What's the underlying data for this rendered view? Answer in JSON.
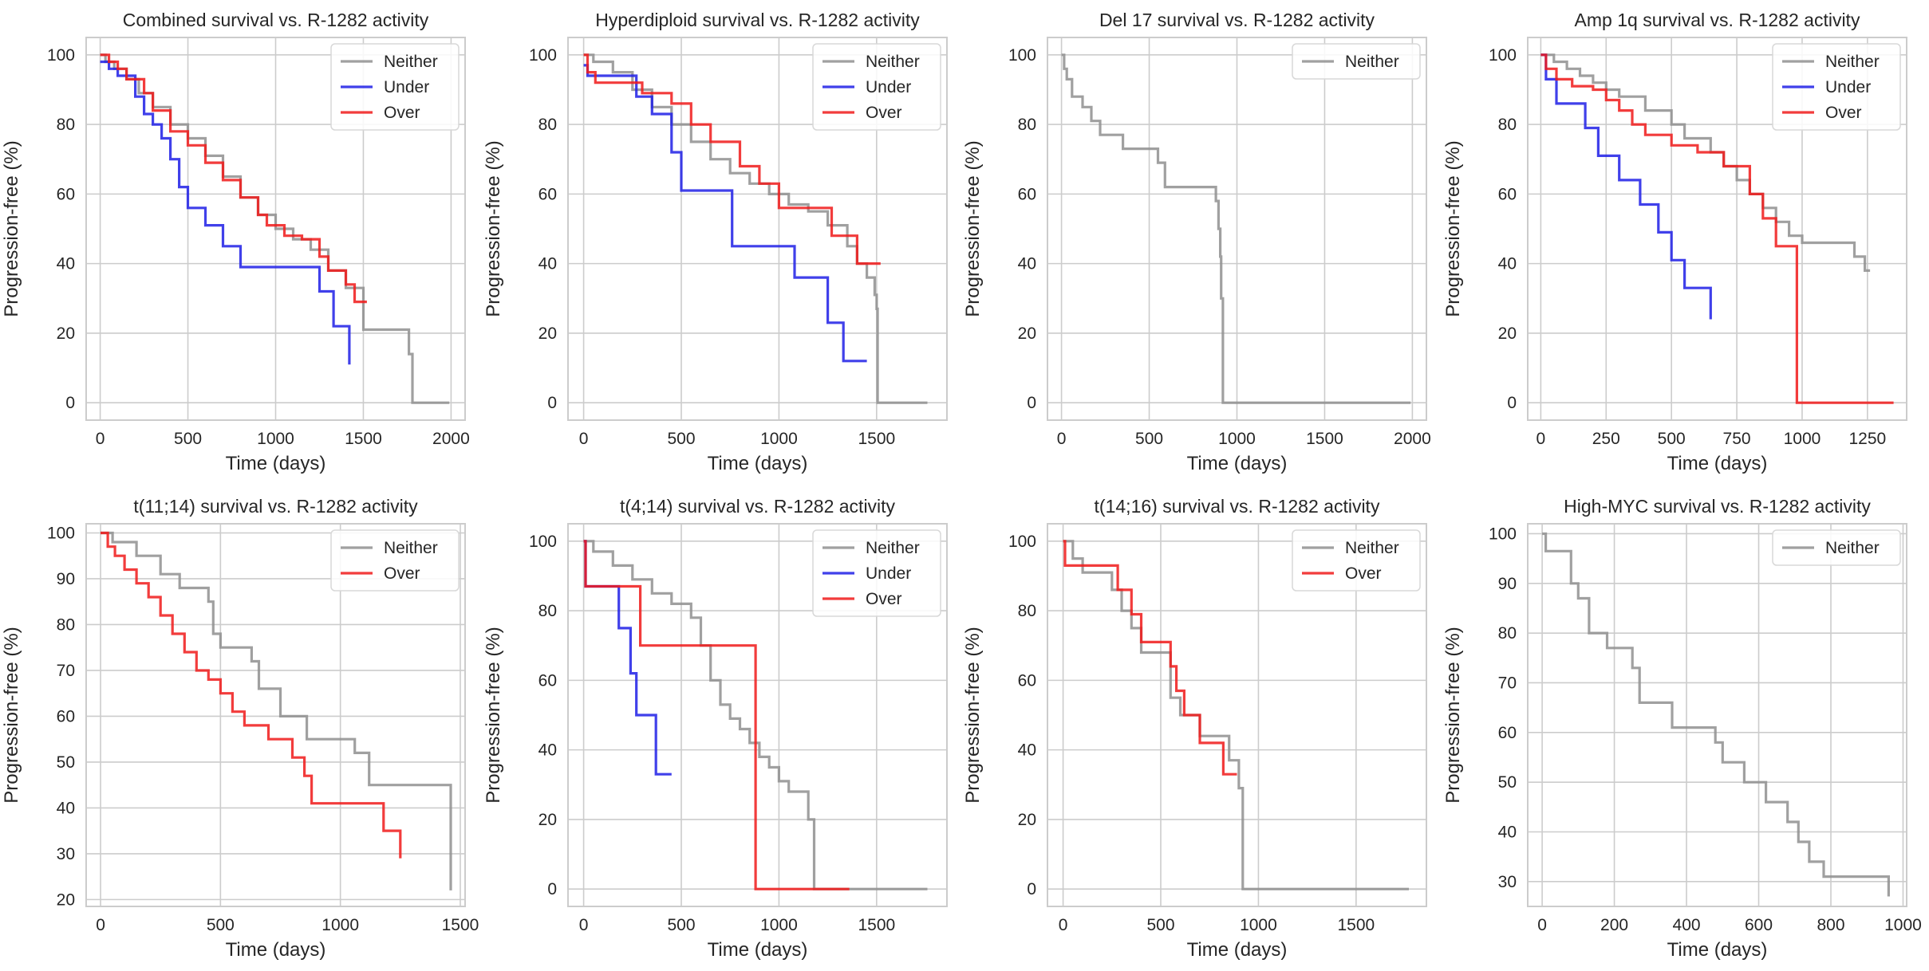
{
  "chart_data": [
    {
      "type": "line",
      "title": "Combined survival vs. R-1282 activity",
      "xlabel": "Time (days)",
      "ylabel": "Progression-free (%)",
      "xlim": [
        -80,
        2080
      ],
      "ylim": [
        -5,
        105
      ],
      "xticks": [
        0,
        500,
        1000,
        1500,
        2000
      ],
      "yticks": [
        0,
        20,
        40,
        60,
        80,
        100
      ],
      "legend": "top-right",
      "series": [
        {
          "name": "Neither",
          "color": "#8f8f8f",
          "x": [
            0,
            30,
            80,
            150,
            220,
            300,
            400,
            500,
            600,
            700,
            800,
            900,
            1000,
            1100,
            1200,
            1300,
            1400,
            1500,
            1500,
            1760,
            1760,
            1780,
            1780,
            1990
          ],
          "y": [
            100,
            98,
            96,
            93,
            89,
            85,
            80,
            76,
            71,
            65,
            59,
            54,
            50,
            47,
            44,
            38,
            33,
            28,
            21,
            21,
            14,
            14,
            0,
            0
          ]
        },
        {
          "name": "Under",
          "color": "#1f1fe6",
          "x": [
            0,
            50,
            100,
            200,
            250,
            300,
            350,
            400,
            450,
            500,
            600,
            700,
            800,
            1000,
            1250,
            1330,
            1420
          ],
          "y": [
            98,
            96,
            94,
            88,
            83,
            80,
            76,
            70,
            62,
            56,
            51,
            45,
            39,
            39,
            32,
            22,
            11
          ]
        },
        {
          "name": "Over",
          "color": "#f01a1a",
          "x": [
            0,
            50,
            100,
            150,
            250,
            300,
            400,
            500,
            600,
            700,
            800,
            900,
            950,
            1050,
            1150,
            1250,
            1300,
            1400,
            1450,
            1520
          ],
          "y": [
            100,
            98,
            96,
            93,
            89,
            84,
            78,
            74,
            69,
            64,
            59,
            54,
            51,
            48,
            47,
            42,
            38,
            34,
            29,
            29
          ]
        }
      ]
    },
    {
      "type": "line",
      "title": "Hyperdiploid survival vs. R-1282 activity",
      "xlabel": "Time (days)",
      "ylabel": "Progression-free (%)",
      "xlim": [
        -80,
        1860
      ],
      "ylim": [
        -5,
        105
      ],
      "xticks": [
        0,
        500,
        1000,
        1500
      ],
      "yticks": [
        0,
        20,
        40,
        60,
        80,
        100
      ],
      "legend": "top-right",
      "series": [
        {
          "name": "Neither",
          "color": "#8f8f8f",
          "x": [
            0,
            50,
            150,
            250,
            350,
            450,
            550,
            650,
            750,
            850,
            950,
            1050,
            1150,
            1250,
            1350,
            1400,
            1450,
            1490,
            1500,
            1505,
            1760
          ],
          "y": [
            100,
            98,
            95,
            90,
            85,
            80,
            75,
            70,
            66,
            63,
            60,
            57,
            55,
            51,
            45,
            40,
            36,
            31,
            27,
            0,
            0
          ]
        },
        {
          "name": "Under",
          "color": "#1f1fe6",
          "x": [
            0,
            20,
            270,
            350,
            450,
            500,
            760,
            1080,
            1250,
            1330,
            1450
          ],
          "y": [
            97,
            94,
            88,
            83,
            72,
            61,
            45,
            36,
            23,
            12,
            12
          ]
        },
        {
          "name": "Over",
          "color": "#f01a1a",
          "x": [
            0,
            20,
            60,
            300,
            450,
            550,
            650,
            800,
            900,
            1000,
            1270,
            1400,
            1520
          ],
          "y": [
            100,
            95,
            92,
            89,
            86,
            80,
            75,
            68,
            63,
            56,
            48,
            40,
            40
          ]
        }
      ]
    },
    {
      "type": "line",
      "title": "Del 17 survival vs. R-1282 activity",
      "xlabel": "Time (days)",
      "ylabel": "Progression-free (%)",
      "xlim": [
        -80,
        2080
      ],
      "ylim": [
        -5,
        105
      ],
      "xticks": [
        0,
        500,
        1000,
        1500,
        2000
      ],
      "yticks": [
        0,
        20,
        40,
        60,
        80,
        100
      ],
      "legend": "top-right",
      "series": [
        {
          "name": "Neither",
          "color": "#8f8f8f",
          "x": [
            0,
            15,
            30,
            60,
            120,
            170,
            220,
            350,
            550,
            590,
            880,
            895,
            905,
            910,
            920,
            1990
          ],
          "y": [
            100,
            96,
            93,
            88,
            85,
            81,
            77,
            73,
            69,
            62,
            58,
            50,
            42,
            30,
            0,
            0
          ]
        }
      ]
    },
    {
      "type": "line",
      "title": "Amp 1q survival vs. R-1282 activity",
      "xlabel": "Time (days)",
      "ylabel": "Progression-free (%)",
      "xlim": [
        -50,
        1400
      ],
      "ylim": [
        -5,
        105
      ],
      "xticks": [
        0,
        250,
        500,
        750,
        1000,
        1250
      ],
      "yticks": [
        0,
        20,
        40,
        60,
        80,
        100
      ],
      "legend": "top-right",
      "series": [
        {
          "name": "Neither",
          "color": "#8f8f8f",
          "x": [
            0,
            50,
            100,
            150,
            200,
            250,
            300,
            400,
            500,
            550,
            650,
            700,
            750,
            800,
            850,
            900,
            950,
            1000,
            1050,
            1100,
            1150,
            1200,
            1240,
            1260
          ],
          "y": [
            100,
            98,
            96,
            94,
            92,
            90,
            88,
            84,
            80,
            76,
            72,
            68,
            64,
            60,
            56,
            52,
            48,
            46,
            46,
            46,
            46,
            42,
            38,
            38
          ]
        },
        {
          "name": "Under",
          "color": "#1f1fe6",
          "x": [
            0,
            20,
            60,
            170,
            220,
            300,
            380,
            450,
            500,
            550,
            650
          ],
          "y": [
            100,
            93,
            86,
            79,
            71,
            64,
            57,
            49,
            41,
            33,
            24
          ]
        },
        {
          "name": "Over",
          "color": "#f01a1a",
          "x": [
            0,
            20,
            60,
            120,
            200,
            250,
            300,
            350,
            400,
            500,
            600,
            700,
            800,
            850,
            900,
            980,
            1350
          ],
          "y": [
            100,
            96,
            93,
            91,
            90,
            87,
            84,
            80,
            77,
            74,
            72,
            68,
            60,
            53,
            45,
            0,
            0
          ]
        }
      ]
    },
    {
      "type": "line",
      "title": "t(11;14) survival vs. R-1282 activity",
      "xlabel": "Time (days)",
      "ylabel": "Progression-free (%)",
      "xlim": [
        -60,
        1520
      ],
      "ylim": [
        18.5,
        102
      ],
      "xticks": [
        0,
        500,
        1000,
        1500
      ],
      "yticks": [
        20,
        30,
        40,
        50,
        60,
        70,
        80,
        90,
        100
      ],
      "legend": "top-right",
      "series": [
        {
          "name": "Neither",
          "color": "#8f8f8f",
          "x": [
            0,
            50,
            150,
            250,
            330,
            450,
            470,
            500,
            630,
            660,
            750,
            860,
            1060,
            1120,
            1460
          ],
          "y": [
            100,
            98,
            95,
            91,
            88,
            85,
            78,
            75,
            72,
            66,
            60,
            55,
            52,
            45,
            22
          ]
        },
        {
          "name": "Over",
          "color": "#f01a1a",
          "x": [
            0,
            30,
            60,
            100,
            150,
            200,
            250,
            300,
            350,
            400,
            450,
            500,
            550,
            600,
            700,
            800,
            850,
            880,
            1150,
            1180,
            1250
          ],
          "y": [
            100,
            97,
            95,
            92,
            89,
            86,
            82,
            78,
            74,
            70,
            68,
            65,
            61,
            58,
            55,
            51,
            47,
            41,
            41,
            35,
            29
          ]
        }
      ]
    },
    {
      "type": "line",
      "title": "t(4;14) survival vs. R-1282 activity",
      "xlabel": "Time (days)",
      "ylabel": "Progression-free (%)",
      "xlim": [
        -80,
        1860
      ],
      "ylim": [
        -5,
        105
      ],
      "xticks": [
        0,
        500,
        1000,
        1500
      ],
      "yticks": [
        0,
        20,
        40,
        60,
        80,
        100
      ],
      "legend": "top-right",
      "series": [
        {
          "name": "Neither",
          "color": "#8f8f8f",
          "x": [
            0,
            50,
            150,
            250,
            350,
            450,
            550,
            600,
            650,
            700,
            750,
            800,
            850,
            900,
            950,
            1000,
            1050,
            1150,
            1180,
            1760
          ],
          "y": [
            100,
            97,
            93,
            89,
            85,
            82,
            78,
            70,
            60,
            53,
            49,
            46,
            42,
            38,
            35,
            31,
            28,
            20,
            0,
            0
          ]
        },
        {
          "name": "Under",
          "color": "#1f1fe6",
          "x": [
            0,
            10,
            180,
            240,
            270,
            370,
            450
          ],
          "y": [
            100,
            87,
            75,
            62,
            50,
            33,
            33
          ]
        },
        {
          "name": "Over",
          "color": "#f01a1a",
          "x": [
            0,
            10,
            290,
            880,
            1360
          ],
          "y": [
            100,
            87,
            70,
            0,
            0
          ]
        }
      ]
    },
    {
      "type": "line",
      "title": "t(14;16) survival vs. R-1282 activity",
      "xlabel": "Time (days)",
      "ylabel": "Progression-free (%)",
      "xlim": [
        -80,
        1860
      ],
      "ylim": [
        -5,
        105
      ],
      "xticks": [
        0,
        500,
        1000,
        1500
      ],
      "yticks": [
        0,
        20,
        40,
        60,
        80,
        100
      ],
      "legend": "top-right",
      "series": [
        {
          "name": "Neither",
          "color": "#8f8f8f",
          "x": [
            0,
            50,
            100,
            250,
            300,
            350,
            400,
            550,
            600,
            700,
            850,
            900,
            920,
            1770
          ],
          "y": [
            100,
            95,
            91,
            86,
            80,
            75,
            68,
            55,
            50,
            44,
            37,
            29,
            0,
            0
          ]
        },
        {
          "name": "Over",
          "color": "#f01a1a",
          "x": [
            0,
            10,
            280,
            350,
            400,
            550,
            580,
            620,
            700,
            820,
            890
          ],
          "y": [
            100,
            93,
            86,
            79,
            71,
            64,
            57,
            50,
            42,
            33,
            33
          ]
        }
      ]
    },
    {
      "type": "line",
      "title": "High-MYC survival vs. R-1282 activity",
      "xlabel": "Time (days)",
      "ylabel": "Progression-free (%)",
      "xlim": [
        -40,
        1010
      ],
      "ylim": [
        25,
        102
      ],
      "xticks": [
        0,
        200,
        400,
        600,
        800,
        1000
      ],
      "yticks": [
        30,
        40,
        50,
        60,
        70,
        80,
        90,
        100
      ],
      "legend": "top-right",
      "series": [
        {
          "name": "Neither",
          "color": "#8f8f8f",
          "x": [
            0,
            10,
            80,
            100,
            130,
            180,
            250,
            270,
            360,
            480,
            500,
            560,
            620,
            680,
            710,
            740,
            780,
            960
          ],
          "y": [
            100,
            96.5,
            90,
            87,
            80,
            77,
            73,
            66,
            61,
            58,
            54,
            50,
            46,
            42,
            38,
            34,
            31,
            27
          ]
        }
      ]
    }
  ]
}
